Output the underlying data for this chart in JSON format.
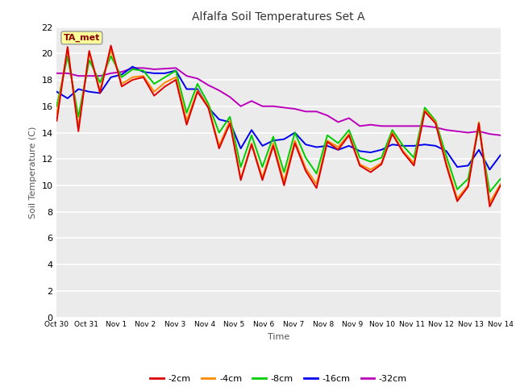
{
  "title": "Alfalfa Soil Temperatures Set A",
  "xlabel": "Time",
  "ylabel": "Soil Temperature (C)",
  "ylim": [
    0,
    22
  ],
  "yticks": [
    0,
    2,
    4,
    6,
    8,
    10,
    12,
    14,
    16,
    18,
    20,
    22
  ],
  "annotation_label": "TA_met",
  "annotation_color": "#880000",
  "annotation_bg": "#ffff99",
  "fig_bg": "#ffffff",
  "plot_bg": "#ebebeb",
  "grid_color": "#ffffff",
  "series": {
    "2cm": {
      "color": "#dd0000",
      "label": "-2cm",
      "values": [
        14.9,
        20.5,
        14.1,
        20.2,
        17.0,
        20.6,
        17.5,
        18.0,
        18.2,
        16.8,
        17.5,
        18.0,
        14.6,
        17.1,
        15.9,
        12.8,
        14.7,
        10.4,
        13.1,
        10.4,
        13.0,
        10.0,
        13.2,
        11.1,
        9.8,
        13.3,
        12.7,
        13.8,
        11.5,
        11.0,
        11.6,
        13.9,
        12.5,
        11.5,
        15.6,
        14.7,
        11.5,
        8.8,
        9.9,
        14.7,
        8.4,
        10.0
      ]
    },
    "4cm": {
      "color": "#ff8800",
      "label": "-4cm",
      "values": [
        15.4,
        20.4,
        14.4,
        20.1,
        17.2,
        20.3,
        17.7,
        18.2,
        18.3,
        17.1,
        17.8,
        18.2,
        14.9,
        17.2,
        16.0,
        13.0,
        14.9,
        10.5,
        13.2,
        10.6,
        13.2,
        10.3,
        13.4,
        11.3,
        10.1,
        13.4,
        12.9,
        13.9,
        11.6,
        11.2,
        11.7,
        14.0,
        12.6,
        11.7,
        15.7,
        14.8,
        11.7,
        9.0,
        10.0,
        14.8,
        8.7,
        10.1
      ]
    },
    "8cm": {
      "color": "#00cc00",
      "label": "-8cm",
      "values": [
        16.0,
        19.8,
        15.2,
        19.5,
        17.8,
        19.8,
        18.2,
        18.8,
        18.7,
        17.7,
        18.2,
        18.7,
        15.5,
        17.7,
        16.2,
        14.0,
        15.2,
        11.4,
        13.8,
        11.4,
        13.7,
        11.0,
        14.0,
        12.1,
        10.9,
        13.8,
        13.2,
        14.2,
        12.1,
        11.8,
        12.1,
        14.2,
        13.0,
        12.1,
        15.9,
        14.9,
        12.2,
        9.7,
        10.5,
        14.4,
        9.5,
        10.5
      ]
    },
    "16cm": {
      "color": "#0000ee",
      "label": "-16cm",
      "values": [
        17.1,
        16.6,
        17.3,
        17.1,
        17.0,
        18.2,
        18.4,
        19.0,
        18.6,
        18.5,
        18.5,
        18.7,
        17.3,
        17.3,
        15.9,
        15.0,
        14.8,
        12.8,
        14.2,
        13.0,
        13.4,
        13.5,
        14.0,
        13.1,
        12.9,
        13.0,
        12.7,
        13.0,
        12.6,
        12.5,
        12.7,
        13.1,
        13.0,
        13.0,
        13.1,
        13.0,
        12.6,
        11.4,
        11.5,
        12.7,
        11.2,
        12.3
      ]
    },
    "32cm": {
      "color": "#bb00bb",
      "label": "-32cm",
      "values": [
        18.5,
        18.5,
        18.3,
        18.3,
        18.3,
        18.5,
        18.6,
        18.9,
        18.9,
        18.8,
        18.85,
        18.9,
        18.3,
        18.1,
        17.6,
        17.2,
        16.7,
        16.0,
        16.4,
        16.0,
        16.0,
        15.9,
        15.8,
        15.6,
        15.6,
        15.3,
        14.8,
        15.1,
        14.5,
        14.6,
        14.5,
        14.5,
        14.5,
        14.5,
        14.5,
        14.4,
        14.2,
        14.1,
        14.0,
        14.1,
        13.9,
        13.8
      ]
    }
  },
  "xtick_labels": [
    "Oct 30",
    "Oct 31",
    "Nov 1",
    "Nov 2",
    "Nov 3",
    "Nov 4",
    "Nov 5",
    "Nov 6",
    "Nov 7",
    "Nov 8",
    "Nov 9",
    "Nov 10",
    "Nov 11",
    "Nov 12",
    "Nov 13",
    "Nov 14"
  ],
  "n_points": 42,
  "days": 15
}
